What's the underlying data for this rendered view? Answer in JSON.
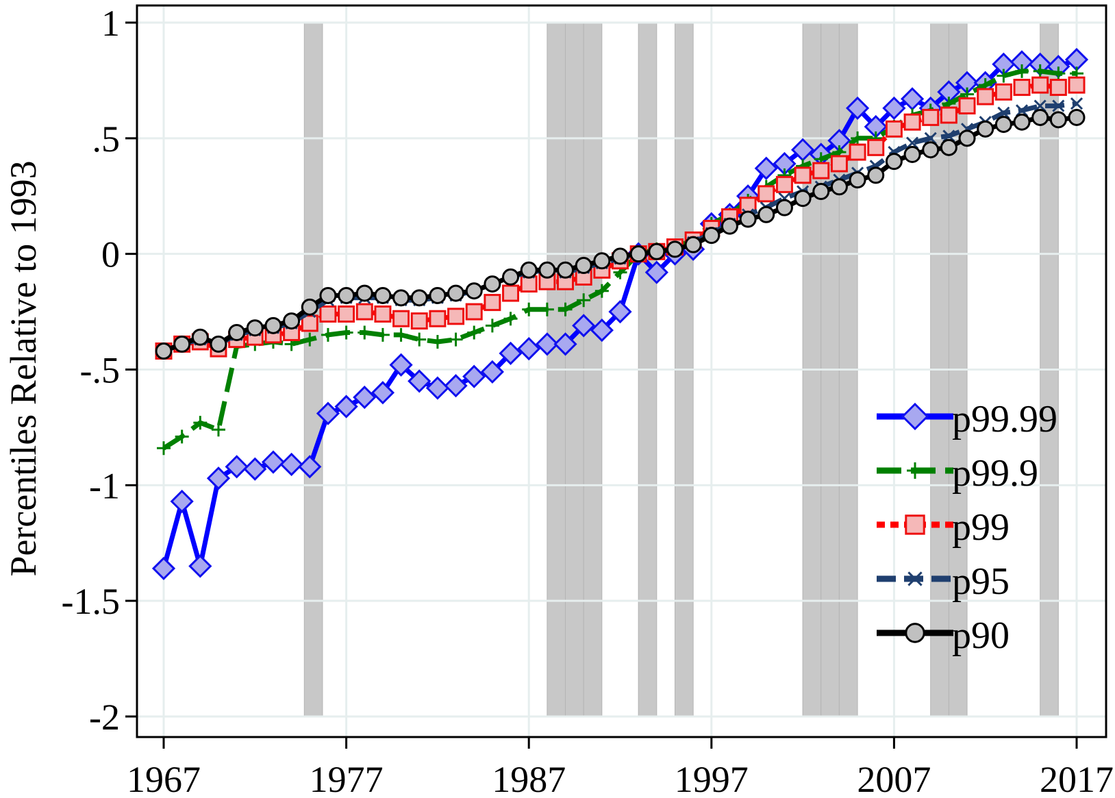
{
  "chart_data": {
    "type": "line",
    "title": "",
    "xlabel": "",
    "ylabel": "Percentiles Relative to 1993",
    "xlim": [
      1967,
      2017
    ],
    "ylim": [
      -2,
      1
    ],
    "x_ticks": [
      "1967",
      "1977",
      "1987",
      "1997",
      "2007",
      "2017"
    ],
    "y_ticks": [
      {
        "value": 1,
        "label": "1"
      },
      {
        "value": 0.5,
        "label": ".5"
      },
      {
        "value": 0,
        "label": "0"
      },
      {
        "value": -0.5,
        "label": "-.5"
      },
      {
        "value": -1,
        "label": "-1"
      },
      {
        "value": -1.5,
        "label": "-1.5"
      },
      {
        "value": -2,
        "label": "-2"
      }
    ],
    "grid": true,
    "legend_position": "bottom-right",
    "recession_bands": [
      [
        1974.7,
        1975.7
      ],
      [
        1988,
        1989
      ],
      [
        1989,
        1990
      ],
      [
        1990,
        1991
      ],
      [
        1993,
        1994
      ],
      [
        1995,
        1996
      ],
      [
        2002,
        2003
      ],
      [
        2003,
        2004
      ],
      [
        2004,
        2005
      ],
      [
        2009,
        2010
      ],
      [
        2010,
        2011
      ],
      [
        2015,
        2016
      ]
    ],
    "x": [
      1967,
      1968,
      1969,
      1970,
      1971,
      1972,
      1973,
      1974,
      1975,
      1976,
      1977,
      1978,
      1979,
      1980,
      1981,
      1982,
      1983,
      1984,
      1985,
      1986,
      1987,
      1988,
      1989,
      1990,
      1991,
      1992,
      1993,
      1994,
      1995,
      1996,
      1997,
      1998,
      1999,
      2000,
      2001,
      2002,
      2003,
      2004,
      2005,
      2006,
      2007,
      2008,
      2009,
      2010,
      2011,
      2012,
      2013,
      2014,
      2015,
      2016,
      2017
    ],
    "series": [
      {
        "name": "p99.99",
        "color": "#0000ff",
        "marker": "diamond",
        "marker_fill": "#a8a8f0",
        "marker_stroke": "#1010ee",
        "dash": "",
        "values": [
          -1.36,
          -1.07,
          -1.35,
          -0.97,
          -0.92,
          -0.93,
          -0.9,
          -0.91,
          -0.92,
          -0.69,
          -0.66,
          -0.62,
          -0.6,
          -0.48,
          -0.55,
          -0.58,
          -0.57,
          -0.53,
          -0.51,
          -0.43,
          -0.41,
          -0.39,
          -0.39,
          -0.31,
          -0.33,
          -0.25,
          0,
          -0.08,
          0,
          0.02,
          0.13,
          0.17,
          0.25,
          0.37,
          0.39,
          0.45,
          0.43,
          0.49,
          0.63,
          0.55,
          0.63,
          0.67,
          0.63,
          0.7,
          0.74,
          0.74,
          0.82,
          0.83,
          0.82,
          0.81,
          0.84
        ]
      },
      {
        "name": "p99.9",
        "color": "#008000",
        "marker": "plus",
        "marker_fill": "none",
        "marker_stroke": "#008000",
        "dash": "36 14",
        "values": [
          -0.84,
          -0.79,
          -0.73,
          -0.76,
          -0.4,
          -0.39,
          -0.38,
          -0.39,
          -0.37,
          -0.35,
          -0.34,
          -0.34,
          -0.35,
          -0.35,
          -0.37,
          -0.38,
          -0.37,
          -0.34,
          -0.31,
          -0.28,
          -0.24,
          -0.24,
          -0.24,
          -0.2,
          -0.16,
          -0.08,
          0,
          0.02,
          0.03,
          0.06,
          0.13,
          0.17,
          0.23,
          0.29,
          0.34,
          0.38,
          0.41,
          0.44,
          0.5,
          0.5,
          0.55,
          0.6,
          0.62,
          0.65,
          0.69,
          0.73,
          0.77,
          0.79,
          0.79,
          0.78,
          0.78
        ]
      },
      {
        "name": "p99",
        "color": "#ff0000",
        "marker": "square",
        "marker_fill": "#f5b8b8",
        "marker_stroke": "#ee1010",
        "dash": "12 8",
        "values": [
          -0.42,
          -0.39,
          -0.38,
          -0.41,
          -0.37,
          -0.36,
          -0.35,
          -0.34,
          -0.3,
          -0.26,
          -0.26,
          -0.25,
          -0.26,
          -0.28,
          -0.29,
          -0.28,
          -0.27,
          -0.25,
          -0.21,
          -0.17,
          -0.13,
          -0.12,
          -0.12,
          -0.1,
          -0.07,
          -0.03,
          0,
          0.01,
          0.03,
          0.06,
          0.11,
          0.16,
          0.21,
          0.26,
          0.3,
          0.34,
          0.36,
          0.39,
          0.44,
          0.46,
          0.54,
          0.57,
          0.59,
          0.6,
          0.64,
          0.68,
          0.7,
          0.72,
          0.73,
          0.72,
          0.73
        ]
      },
      {
        "name": "p95",
        "color": "#1f3f6f",
        "marker": "x",
        "marker_fill": "none",
        "marker_stroke": "#1f3f6f",
        "dash": "28 12",
        "values": [
          -0.42,
          -0.39,
          -0.37,
          -0.39,
          -0.35,
          -0.33,
          -0.32,
          -0.3,
          -0.25,
          -0.2,
          -0.19,
          -0.19,
          -0.19,
          -0.2,
          -0.2,
          -0.19,
          -0.18,
          -0.16,
          -0.13,
          -0.1,
          -0.08,
          -0.07,
          -0.08,
          -0.06,
          -0.04,
          -0.02,
          0,
          0.01,
          0.02,
          0.05,
          0.09,
          0.13,
          0.17,
          0.2,
          0.24,
          0.27,
          0.29,
          0.32,
          0.35,
          0.38,
          0.44,
          0.48,
          0.5,
          0.51,
          0.54,
          0.57,
          0.61,
          0.62,
          0.64,
          0.64,
          0.65
        ]
      },
      {
        "name": "p90",
        "color": "#000000",
        "marker": "circle",
        "marker_fill": "#c0c0c0",
        "marker_stroke": "#000000",
        "dash": "",
        "values": [
          -0.42,
          -0.39,
          -0.36,
          -0.39,
          -0.34,
          -0.32,
          -0.31,
          -0.29,
          -0.23,
          -0.18,
          -0.18,
          -0.17,
          -0.18,
          -0.19,
          -0.19,
          -0.18,
          -0.17,
          -0.16,
          -0.13,
          -0.1,
          -0.07,
          -0.07,
          -0.07,
          -0.05,
          -0.03,
          -0.01,
          0,
          0.01,
          0.02,
          0.04,
          0.08,
          0.12,
          0.15,
          0.17,
          0.2,
          0.24,
          0.27,
          0.29,
          0.32,
          0.34,
          0.4,
          0.43,
          0.45,
          0.46,
          0.5,
          0.54,
          0.56,
          0.57,
          0.59,
          0.58,
          0.59
        ]
      }
    ]
  }
}
